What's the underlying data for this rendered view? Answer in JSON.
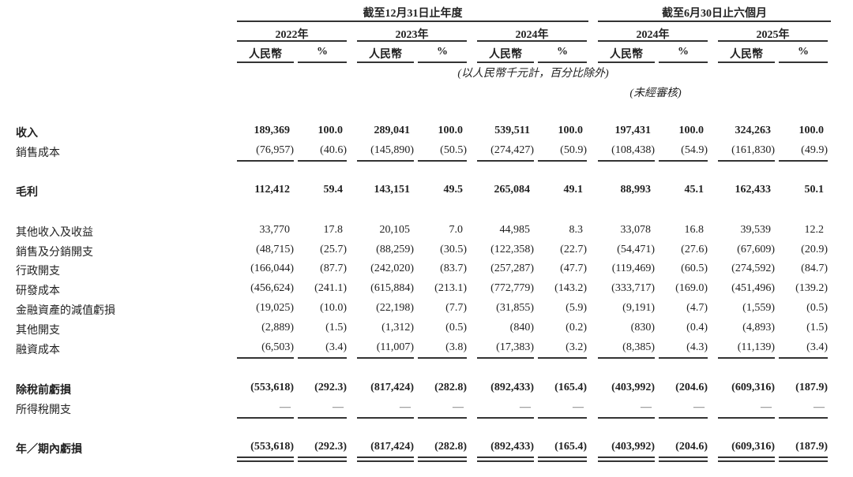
{
  "header": {
    "period_full_year": "截至12月31日止年度",
    "period_six_months": "截至6月30日止六個月",
    "years": [
      "2022年",
      "2023年",
      "2024年",
      "2024年",
      "2025年"
    ],
    "currency_label": "人民幣",
    "percent_label": "%",
    "unit_note": "(以人民幣千元計，百分比除外)",
    "unaudited_note": "(未經審核)"
  },
  "rows": [
    {
      "label": "收入",
      "bold": true,
      "values": [
        "189,369",
        "100.0",
        "289,041",
        "100.0",
        "539,511",
        "100.0",
        "197,431",
        "100.0",
        "324,263",
        "100.0"
      ]
    },
    {
      "label": "銷售成本",
      "underline": "single",
      "values": [
        "(76,957)",
        "(40.6)",
        "(145,890)",
        "(50.5)",
        "(274,427)",
        "(50.9)",
        "(108,438)",
        "(54.9)",
        "(161,830)",
        "(49.9)"
      ]
    },
    {
      "label": "毛利",
      "bold": true,
      "values": [
        "112,412",
        "59.4",
        "143,151",
        "49.5",
        "265,084",
        "49.1",
        "88,993",
        "45.1",
        "162,433",
        "50.1"
      ]
    },
    {
      "label": "其他收入及收益",
      "values": [
        "33,770",
        "17.8",
        "20,105",
        "7.0",
        "44,985",
        "8.3",
        "33,078",
        "16.8",
        "39,539",
        "12.2"
      ]
    },
    {
      "label": "銷售及分銷開支",
      "values": [
        "(48,715)",
        "(25.7)",
        "(88,259)",
        "(30.5)",
        "(122,358)",
        "(22.7)",
        "(54,471)",
        "(27.6)",
        "(67,609)",
        "(20.9)"
      ]
    },
    {
      "label": "行政開支",
      "values": [
        "(166,044)",
        "(87.7)",
        "(242,020)",
        "(83.7)",
        "(257,287)",
        "(47.7)",
        "(119,469)",
        "(60.5)",
        "(274,592)",
        "(84.7)"
      ]
    },
    {
      "label": "研發成本",
      "values": [
        "(456,624)",
        "(241.1)",
        "(615,884)",
        "(213.1)",
        "(772,779)",
        "(143.2)",
        "(333,717)",
        "(169.0)",
        "(451,496)",
        "(139.2)"
      ]
    },
    {
      "label": "金融資產的減值虧損",
      "values": [
        "(19,025)",
        "(10.0)",
        "(22,198)",
        "(7.7)",
        "(31,855)",
        "(5.9)",
        "(9,191)",
        "(4.7)",
        "(1,559)",
        "(0.5)"
      ]
    },
    {
      "label": "其他開支",
      "values": [
        "(2,889)",
        "(1.5)",
        "(1,312)",
        "(0.5)",
        "(840)",
        "(0.2)",
        "(830)",
        "(0.4)",
        "(4,893)",
        "(1.5)"
      ]
    },
    {
      "label": "融資成本",
      "underline": "single",
      "values": [
        "(6,503)",
        "(3.4)",
        "(11,007)",
        "(3.8)",
        "(17,383)",
        "(3.2)",
        "(8,385)",
        "(4.3)",
        "(11,139)",
        "(3.4)"
      ]
    },
    {
      "label": "除稅前虧損",
      "bold": true,
      "values": [
        "(553,618)",
        "(292.3)",
        "(817,424)",
        "(282.8)",
        "(892,433)",
        "(165.4)",
        "(403,992)",
        "(204.6)",
        "(609,316)",
        "(187.9)"
      ]
    },
    {
      "label": "所得稅開支",
      "underline": "single",
      "values": [
        "—",
        "—",
        "—",
        "—",
        "—",
        "—",
        "—",
        "—",
        "—",
        "—"
      ]
    },
    {
      "label": "年／期內虧損",
      "bold": true,
      "underline": "double",
      "values": [
        "(553,618)",
        "(292.3)",
        "(817,424)",
        "(282.8)",
        "(892,433)",
        "(165.4)",
        "(403,992)",
        "(204.6)",
        "(609,316)",
        "(187.9)"
      ]
    }
  ]
}
